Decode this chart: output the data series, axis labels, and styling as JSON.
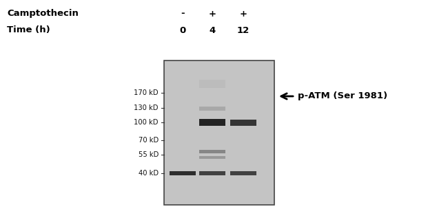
{
  "fig_width": 6.5,
  "fig_height": 3.04,
  "dpi": 100,
  "bg_color": "#ffffff",
  "gel_bg_color": "#b8b8b8",
  "camptothecin_label": "Camptothecin",
  "time_label": "Time (h)",
  "lane_labels_camp": [
    "-",
    "+",
    "+"
  ],
  "lane_labels_time": [
    "0",
    "4",
    "12"
  ],
  "marker_labels": [
    "170 kD",
    "130 kD",
    "100 kD",
    "70 kD",
    "55 kD",
    "40 kD"
  ],
  "annotation_text": "p-ATM (Ser 1981)",
  "gel_color_top": "#d0d0d0",
  "gel_color_mid": "#c0c0c0",
  "band_dark": "#1c1c1c",
  "band_medium": "#505050",
  "band_light": "#909090",
  "band_faint": "#b0b0b0"
}
